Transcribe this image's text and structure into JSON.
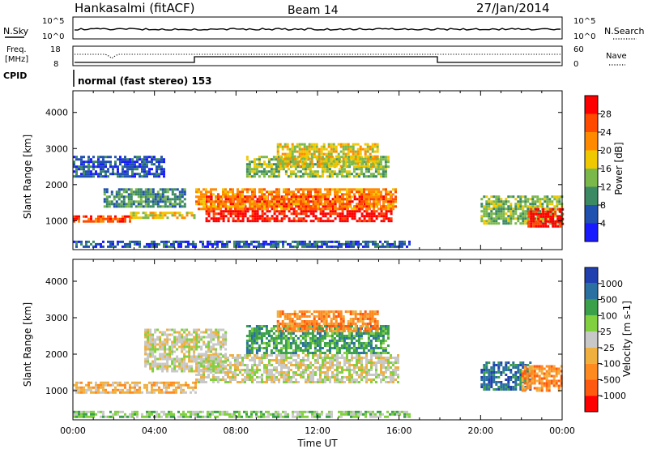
{
  "header": {
    "station": "Hankasalmi (fitACF)",
    "beam": "Beam 14",
    "date": "27/Jan/2014"
  },
  "noise_panel": {
    "left_label": "N.Sky",
    "right_label": "N.Search",
    "ticks": [
      "10^5",
      "10^0"
    ]
  },
  "freq_panel": {
    "left_label": "Freq.",
    "left_unit": "[MHz]",
    "left_ticks": [
      "18",
      "8"
    ],
    "right_label": "Nave",
    "right_ticks": [
      "60",
      "0"
    ]
  },
  "cpid": {
    "label": "CPID",
    "text": "normal (fast stereo) 153"
  },
  "xlabel": "Time UT",
  "x_ticks": [
    "00:00",
    "04:00",
    "08:00",
    "12:00",
    "16:00",
    "20:00",
    "00:00"
  ],
  "y_ticks": [
    "1000",
    "2000",
    "3000",
    "4000"
  ],
  "ylabel": "Slant Range [km]",
  "power_colorbar": {
    "label": "Power [dB]",
    "ticks": [
      "4",
      "8",
      "12",
      "16",
      "20",
      "24",
      "28"
    ],
    "colors": [
      "#1a1aff",
      "#2050b0",
      "#3c8a64",
      "#7ab84a",
      "#f0c800",
      "#ff8a00",
      "#ff4a00",
      "#ff0000"
    ]
  },
  "velocity_colorbar": {
    "label": "Velocity [m s-1]",
    "ticks": [
      "1000",
      "500",
      "100",
      "25",
      "-25",
      "-100",
      "-500",
      "-1000"
    ],
    "colors": [
      "#2040b0",
      "#2a70a0",
      "#3aa04a",
      "#80d040",
      "#c8c8c8",
      "#f0b040",
      "#ff8a20",
      "#ff5a10",
      "#ff0000"
    ]
  },
  "chart_data": [
    {
      "type": "heatmap",
      "name": "Power",
      "x_range_hours": [
        0,
        24
      ],
      "ylim": [
        200,
        4600
      ],
      "regions": [
        {
          "t0": 0.0,
          "t1": 2.8,
          "r0": 950,
          "r1": 1150,
          "level": 6
        },
        {
          "t0": 2.8,
          "t1": 6.0,
          "r0": 1050,
          "r1": 1250,
          "level": 4
        },
        {
          "t0": 6.5,
          "t1": 15.6,
          "r0": 1000,
          "r1": 1700,
          "level": 7
        },
        {
          "t0": 6.0,
          "t1": 15.8,
          "r0": 1300,
          "r1": 1900,
          "level": 5
        },
        {
          "t0": 8.5,
          "t1": 15.5,
          "r0": 2200,
          "r1": 2800,
          "level": 3
        },
        {
          "t0": 10.0,
          "t1": 15.0,
          "r0": 2500,
          "r1": 3150,
          "level": 4
        },
        {
          "t0": 0.0,
          "t1": 4.5,
          "r0": 2200,
          "r1": 2800,
          "level": 1
        },
        {
          "t0": 1.5,
          "t1": 5.5,
          "r0": 1400,
          "r1": 1900,
          "level": 2
        },
        {
          "t0": 0.0,
          "t1": 16.5,
          "r0": 250,
          "r1": 450,
          "level": 1
        },
        {
          "t0": 20.0,
          "t1": 24.0,
          "r0": 900,
          "r1": 1700,
          "level": 3
        },
        {
          "t0": 22.3,
          "t1": 24.0,
          "r0": 850,
          "r1": 1350,
          "level": 7
        }
      ]
    },
    {
      "type": "heatmap",
      "name": "Velocity",
      "x_range_hours": [
        0,
        24
      ],
      "ylim": [
        200,
        4600
      ],
      "regions": [
        {
          "t0": 6.0,
          "t1": 16.0,
          "r0": 1250,
          "r1": 2000,
          "level": 4
        },
        {
          "t0": 3.5,
          "t1": 7.5,
          "r0": 1500,
          "r1": 2700,
          "level": 4
        },
        {
          "t0": 0.0,
          "t1": 6.0,
          "r0": 950,
          "r1": 1250,
          "level": 5
        },
        {
          "t0": 8.5,
          "t1": 15.5,
          "r0": 2000,
          "r1": 2800,
          "level": 2
        },
        {
          "t0": 10.0,
          "t1": 15.0,
          "r0": 2600,
          "r1": 3200,
          "level": 6
        },
        {
          "t0": 0.0,
          "t1": 16.5,
          "r0": 250,
          "r1": 450,
          "level": 3
        },
        {
          "t0": 20.0,
          "t1": 22.5,
          "r0": 1000,
          "r1": 1800,
          "level": 1
        },
        {
          "t0": 22.0,
          "t1": 24.0,
          "r0": 1000,
          "r1": 1700,
          "level": 6
        }
      ]
    }
  ]
}
